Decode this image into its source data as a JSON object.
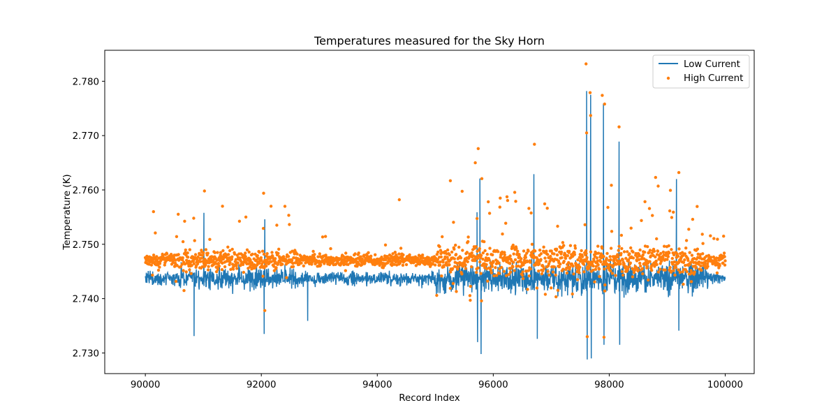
{
  "chart_data": {
    "type": "line+scatter",
    "title": "Temperatures measured for the Sky Horn",
    "xlabel": "Record Index",
    "ylabel": "Temperature (K)",
    "xlim": [
      89300,
      100500
    ],
    "ylim": [
      2.7262,
      2.7857
    ],
    "x_ticks": [
      90000,
      92000,
      94000,
      96000,
      98000,
      100000
    ],
    "x_tick_labels": [
      "90000",
      "92000",
      "94000",
      "96000",
      "98000",
      "100000"
    ],
    "y_ticks": [
      2.73,
      2.74,
      2.75,
      2.76,
      2.77,
      2.78
    ],
    "y_tick_labels": [
      "2.730",
      "2.740",
      "2.750",
      "2.760",
      "2.770",
      "2.780"
    ],
    "legend": {
      "placement": "upper-right"
    },
    "series": [
      {
        "name": "Low Current",
        "kind": "line",
        "color": "#1f77b4",
        "x_range": [
          90000,
          100000
        ],
        "baseline": 2.7437,
        "notable_points": [
          {
            "x": 90840,
            "y": 2.7331
          },
          {
            "x": 91010,
            "y": 2.7558
          },
          {
            "x": 92050,
            "y": 2.7335
          },
          {
            "x": 92060,
            "y": 2.7546
          },
          {
            "x": 92800,
            "y": 2.7359
          },
          {
            "x": 95720,
            "y": 2.7559
          },
          {
            "x": 95730,
            "y": 2.732
          },
          {
            "x": 95770,
            "y": 2.7621
          },
          {
            "x": 95790,
            "y": 2.7298
          },
          {
            "x": 96700,
            "y": 2.7629
          },
          {
            "x": 96760,
            "y": 2.7326
          },
          {
            "x": 97610,
            "y": 2.7782
          },
          {
            "x": 97620,
            "y": 2.7288
          },
          {
            "x": 97680,
            "y": 2.7775
          },
          {
            "x": 97690,
            "y": 2.729
          },
          {
            "x": 97900,
            "y": 2.7759
          },
          {
            "x": 97910,
            "y": 2.7315
          },
          {
            "x": 98170,
            "y": 2.7689
          },
          {
            "x": 98180,
            "y": 2.7315
          },
          {
            "x": 99160,
            "y": 2.762
          },
          {
            "x": 99200,
            "y": 2.7341
          }
        ]
      },
      {
        "name": "High Current",
        "kind": "scatter",
        "color": "#ff7f0e",
        "x_range": [
          90000,
          100000
        ],
        "baseline": 2.7471,
        "notable_points": [
          {
            "x": 90140,
            "y": 2.756
          },
          {
            "x": 91020,
            "y": 2.7598
          },
          {
            "x": 91330,
            "y": 2.757
          },
          {
            "x": 92040,
            "y": 2.7594
          },
          {
            "x": 92060,
            "y": 2.7378
          },
          {
            "x": 94380,
            "y": 2.7582
          },
          {
            "x": 95260,
            "y": 2.7617
          },
          {
            "x": 95690,
            "y": 2.765
          },
          {
            "x": 95740,
            "y": 2.7676
          },
          {
            "x": 96710,
            "y": 2.7684
          },
          {
            "x": 97600,
            "y": 2.7832
          },
          {
            "x": 97610,
            "y": 2.7705
          },
          {
            "x": 97670,
            "y": 2.7779
          },
          {
            "x": 97680,
            "y": 2.7737
          },
          {
            "x": 97880,
            "y": 2.7774
          },
          {
            "x": 97920,
            "y": 2.7758
          },
          {
            "x": 98170,
            "y": 2.7716
          },
          {
            "x": 98800,
            "y": 2.7623
          },
          {
            "x": 99200,
            "y": 2.7632
          },
          {
            "x": 97620,
            "y": 2.733
          },
          {
            "x": 97910,
            "y": 2.7329
          }
        ]
      }
    ]
  }
}
